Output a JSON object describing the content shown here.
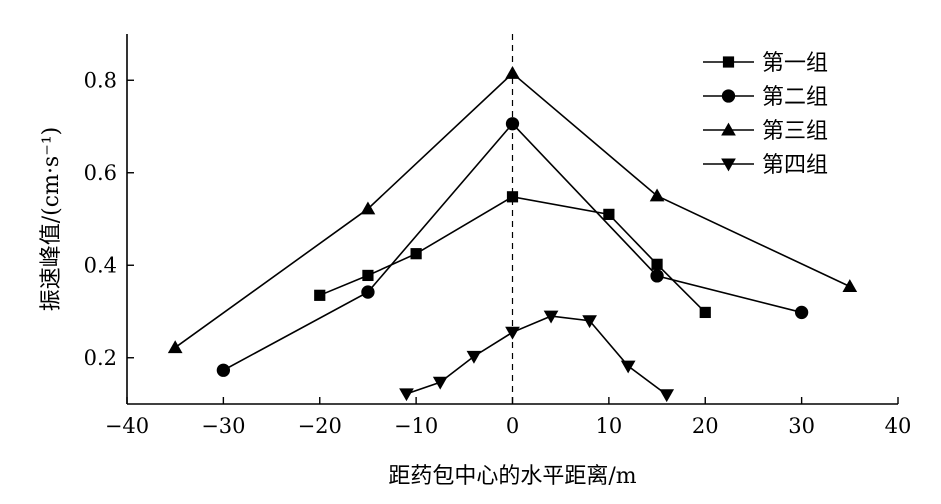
{
  "chart_data": {
    "type": "line",
    "xlabel": "距药包中心的水平距离/m",
    "ylabel": "振速峰值/(cm·s⁻¹)",
    "xlim": [
      -40,
      40
    ],
    "ylim": [
      0.1,
      0.9
    ],
    "xticks": [
      -40,
      -30,
      -20,
      -10,
      0,
      10,
      20,
      30,
      40
    ],
    "xtick_labels": [
      "−40",
      "−30",
      "−20",
      "−10",
      "0",
      "10",
      "20",
      "30",
      "40"
    ],
    "yticks": [
      0.2,
      0.4,
      0.6,
      0.8
    ],
    "ytick_labels": [
      "0.2",
      "0.4",
      "0.6",
      "0.8"
    ],
    "reference_line": {
      "x": 0,
      "style": "dashed"
    },
    "grid": false,
    "legend_position": "top-right",
    "series": [
      {
        "name": "第一组",
        "marker": "square",
        "x": [
          -20,
          -15,
          -10,
          0,
          10,
          15,
          20
        ],
        "y": [
          0.335,
          0.378,
          0.425,
          0.548,
          0.51,
          0.402,
          0.298
        ]
      },
      {
        "name": "第二组",
        "marker": "circle",
        "x": [
          -30,
          -15,
          0,
          15,
          30
        ],
        "y": [
          0.173,
          0.342,
          0.706,
          0.377,
          0.298
        ]
      },
      {
        "name": "第三组",
        "marker": "triangle-up",
        "x": [
          -35,
          -15,
          0,
          15,
          35
        ],
        "y": [
          0.222,
          0.522,
          0.815,
          0.55,
          0.354
        ]
      },
      {
        "name": "第四组",
        "marker": "triangle-down",
        "x": [
          -11,
          -7.5,
          -4,
          0,
          4,
          8,
          12,
          16
        ],
        "y": [
          0.122,
          0.147,
          0.203,
          0.255,
          0.29,
          0.28,
          0.182,
          0.12
        ]
      }
    ]
  }
}
